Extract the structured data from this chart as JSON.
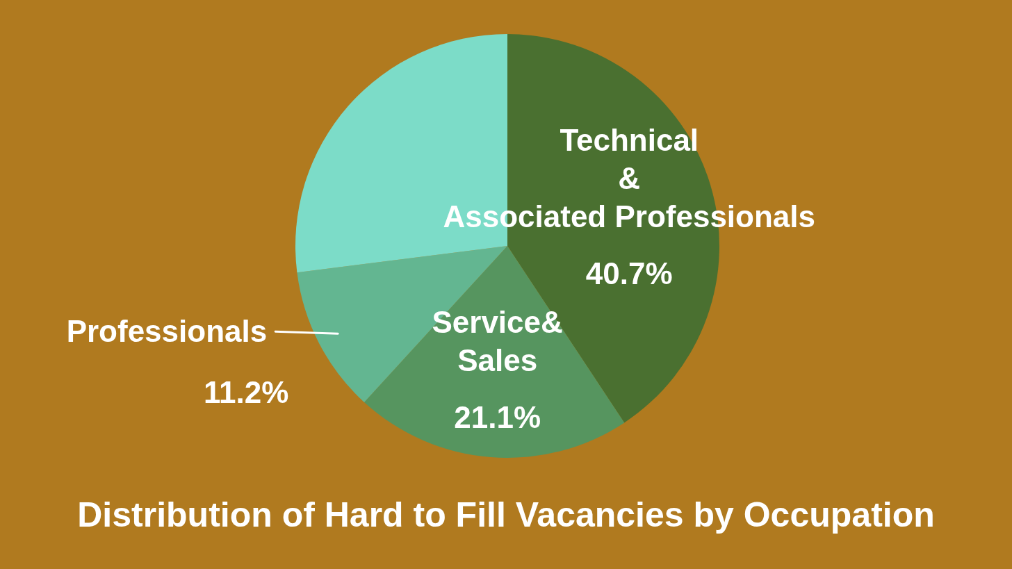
{
  "chart_data": {
    "type": "pie",
    "title": "Distribution of Hard to Fill Vacancies by Occupation",
    "categories": [
      "Technical\n&\nAssociated Professionals",
      "Service&\nSales",
      "Professionals",
      null
    ],
    "values": [
      40.7,
      21.1,
      11.2,
      27.0
    ],
    "value_labels": [
      "40.7%",
      "21.1%",
      "11.2%",
      null
    ],
    "colors": [
      "#4a7030",
      "#56955f",
      "#63b691",
      "#7cdcc8"
    ]
  }
}
